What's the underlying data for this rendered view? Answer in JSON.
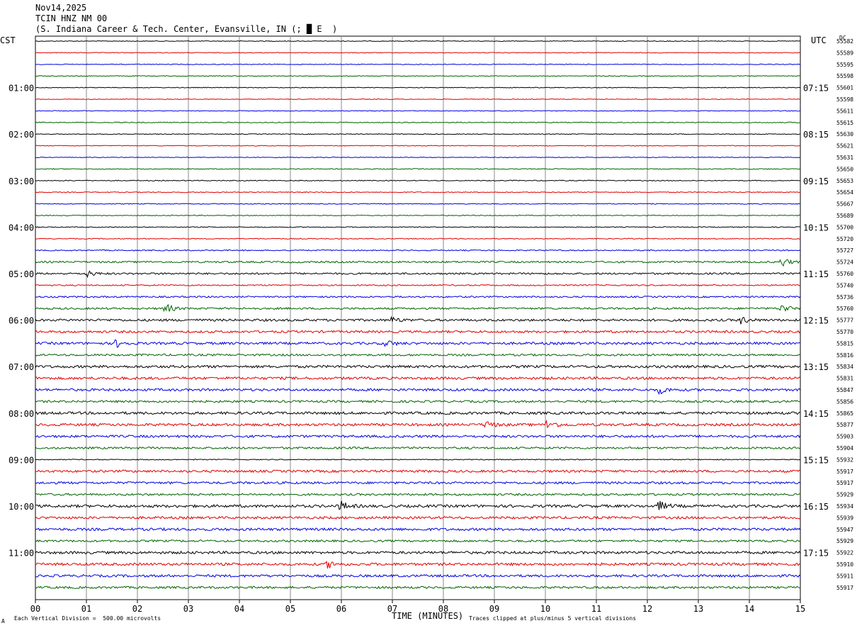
{
  "header": {
    "date": "Nov14,2025",
    "station": "TCIN HNZ NM 00",
    "location": "(S. Indiana Career & Tech. Center, Evansville, IN (; █ E  )"
  },
  "left_axis_label": "CST",
  "right_axis_label": "UTC",
  "dc_label": "DC",
  "footer": {
    "scale_note": "Each Vertical Division =  500.00 microvolts",
    "clip_note": "Traces clipped at plus/minus 5 vertical divisions",
    "mark": "A"
  },
  "colors": {
    "cycle": [
      "#000000",
      "#e00000",
      "#0000e0",
      "#006400"
    ],
    "grid": "#888888"
  },
  "chart_data": {
    "type": "line",
    "title": "",
    "xlabel": "TIME (MINUTES)",
    "x_ticks": [
      "00",
      "01",
      "02",
      "03",
      "04",
      "05",
      "06",
      "07",
      "08",
      "09",
      "10",
      "11",
      "12",
      "13",
      "14",
      "15"
    ],
    "xlim": [
      0,
      15
    ],
    "left_time_labels": [
      "01:00",
      "02:00",
      "03:00",
      "04:00",
      "05:00",
      "06:00",
      "07:00",
      "08:00",
      "09:00",
      "10:00",
      "11:00"
    ],
    "right_time_labels": [
      "07:15",
      "08:15",
      "09:15",
      "10:15",
      "11:15",
      "12:15",
      "13:15",
      "14:15",
      "15:15",
      "16:15",
      "17:15"
    ],
    "trace_count": 48,
    "trace_values": [
      "55582",
      "55589",
      "55595",
      "55598",
      "55601",
      "55598",
      "55611",
      "55615",
      "55630",
      "55621",
      "55631",
      "55650",
      "55653",
      "55654",
      "55667",
      "55689",
      "55700",
      "55720",
      "55727",
      "55724",
      "55760",
      "55740",
      "55736",
      "55760",
      "55777",
      "55770",
      "55815",
      "55816",
      "55834",
      "55831",
      "55847",
      "55856",
      "55865",
      "55877",
      "55903",
      "55904",
      "55932",
      "55917",
      "55917",
      "55929",
      "55934",
      "55939",
      "55947",
      "55929",
      "55922",
      "55910",
      "55911",
      "55917"
    ],
    "noise_levels": [
      0.5,
      0.5,
      0.5,
      0.5,
      0.5,
      0.5,
      0.5,
      0.6,
      0.5,
      0.5,
      0.5,
      0.6,
      0.6,
      0.6,
      0.6,
      0.6,
      0.6,
      0.6,
      0.8,
      1.2,
      1.2,
      0.9,
      1.1,
      1.3,
      1.6,
      1.6,
      1.7,
      1.4,
      1.8,
      1.8,
      1.7,
      1.5,
      1.8,
      1.8,
      1.7,
      1.4,
      0.6,
      1.6,
      1.6,
      1.4,
      1.9,
      1.7,
      1.8,
      1.4,
      1.8,
      1.8,
      1.7,
      1.5
    ],
    "events": [
      {
        "trace": 20,
        "minute": 1.0,
        "amp": 5
      },
      {
        "trace": 23,
        "minute": 2.55,
        "amp": 7
      },
      {
        "trace": 24,
        "minute": 7.0,
        "amp": 4
      },
      {
        "trace": 24,
        "minute": 13.85,
        "amp": 5
      },
      {
        "trace": 26,
        "minute": 1.6,
        "amp": 5
      },
      {
        "trace": 26,
        "minute": 6.9,
        "amp": 4
      },
      {
        "trace": 30,
        "minute": 12.25,
        "amp": 5
      },
      {
        "trace": 33,
        "minute": 8.85,
        "amp": 5
      },
      {
        "trace": 33,
        "minute": 10.05,
        "amp": 7
      },
      {
        "trace": 40,
        "minute": 6.0,
        "amp": 6
      },
      {
        "trace": 40,
        "minute": 12.25,
        "amp": 6
      },
      {
        "trace": 45,
        "minute": 5.75,
        "amp": 5
      },
      {
        "trace": 19,
        "minute": 14.65,
        "amp": 6
      },
      {
        "trace": 23,
        "minute": 14.65,
        "amp": 6
      }
    ]
  }
}
